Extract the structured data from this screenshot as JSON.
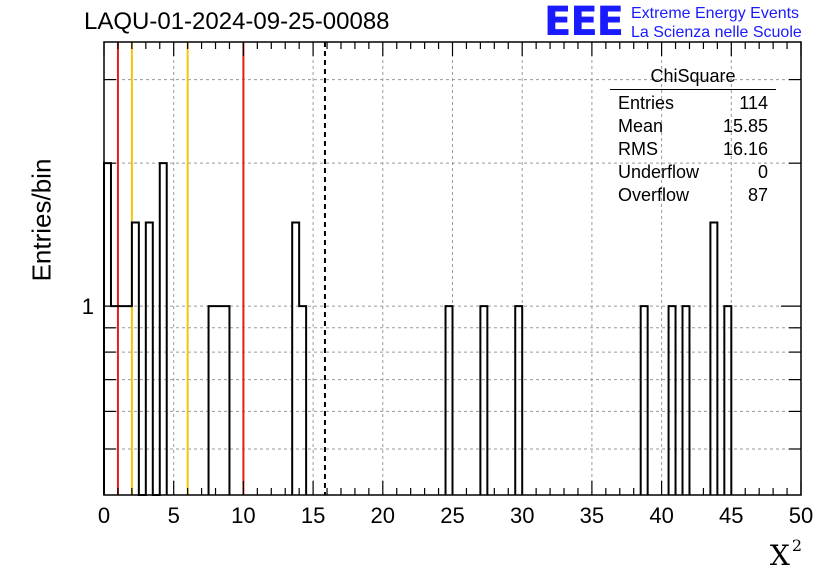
{
  "title": "LAQU-01-2024-09-25-00088",
  "logo": {
    "mark": "EEE",
    "line1": "Extreme Energy Events",
    "line2": "La Scienza nelle Scuole"
  },
  "stats": {
    "title": "ChiSquare",
    "rows": [
      {
        "label": "Entries",
        "value": "114"
      },
      {
        "label": "Mean",
        "value": "15.85"
      },
      {
        "label": "RMS",
        "value": "16.16"
      },
      {
        "label": "Underflow",
        "value": "0"
      },
      {
        "label": "Overflow",
        "value": "87"
      }
    ]
  },
  "chart_data": {
    "type": "bar",
    "title": "LAQU-01-2024-09-25-00088",
    "xlabel": "X",
    "xlabel_superscript": "2",
    "ylabel": "Entries/bin",
    "xlim": [
      0,
      50
    ],
    "ylim": [
      0.4,
      3.6
    ],
    "yscale": "log",
    "grid": true,
    "bin_width": 0.5,
    "xticks": [
      0,
      5,
      10,
      15,
      20,
      25,
      30,
      35,
      40,
      45,
      50
    ],
    "xtick_labels": [
      "0",
      "5",
      "10",
      "15",
      "20",
      "25",
      "30",
      "35",
      "40",
      "45",
      "50"
    ],
    "ytick_labels": [
      "1"
    ],
    "ytick_values": [
      1
    ],
    "bins": [
      {
        "x": 0.0,
        "value": 2
      },
      {
        "x": 0.5,
        "value": 1
      },
      {
        "x": 1.0,
        "value": 1
      },
      {
        "x": 1.5,
        "value": 1
      },
      {
        "x": 2.0,
        "value": 1.5
      },
      {
        "x": 2.5,
        "value": 0
      },
      {
        "x": 3.0,
        "value": 1.5
      },
      {
        "x": 3.5,
        "value": 0
      },
      {
        "x": 4.0,
        "value": 2
      },
      {
        "x": 7.5,
        "value": 1
      },
      {
        "x": 8.0,
        "value": 1
      },
      {
        "x": 8.5,
        "value": 1
      },
      {
        "x": 13.5,
        "value": 1.5
      },
      {
        "x": 14.0,
        "value": 1
      },
      {
        "x": 24.5,
        "value": 1
      },
      {
        "x": 27.0,
        "value": 1
      },
      {
        "x": 29.5,
        "value": 1
      },
      {
        "x": 38.5,
        "value": 1
      },
      {
        "x": 40.5,
        "value": 1
      },
      {
        "x": 41.5,
        "value": 1
      },
      {
        "x": 43.5,
        "value": 1.5
      },
      {
        "x": 44.5,
        "value": 1
      }
    ],
    "reference_lines": [
      {
        "x": 1.0,
        "color": "#e0201a",
        "style": "solid"
      },
      {
        "x": 2.0,
        "color": "#f2c40f",
        "style": "solid"
      },
      {
        "x": 6.0,
        "color": "#f2c40f",
        "style": "solid"
      },
      {
        "x": 10.0,
        "color": "#e0201a",
        "style": "solid"
      },
      {
        "x": 15.85,
        "color": "#000000",
        "style": "dashed"
      }
    ]
  }
}
